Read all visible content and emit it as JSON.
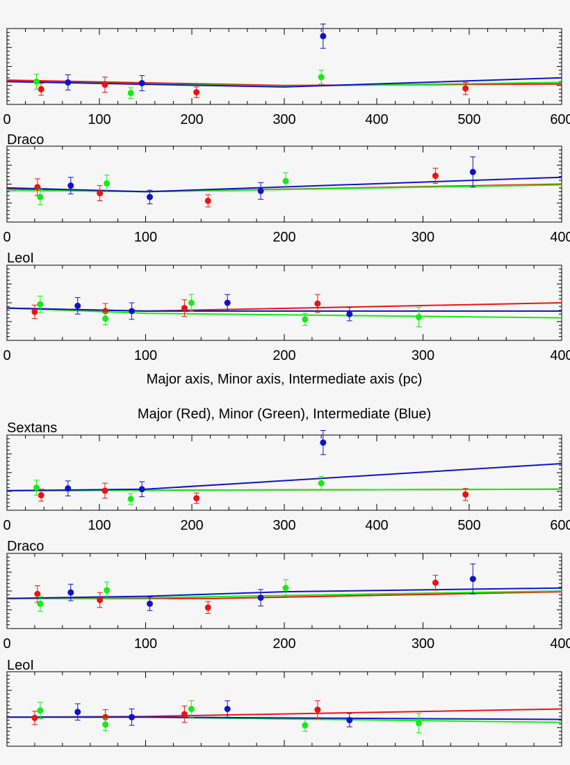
{
  "colors": {
    "major": "#ee1111",
    "minor": "#11ee11",
    "intermediate": "#1111cc",
    "axis": "#000000",
    "background": "#f6f6f6"
  },
  "xlabel": "Major axis, Minor axis, Intermediate axis (pc)",
  "section_title": "Major (Red), Minor (Green), Intermediate (Blue)",
  "chart_data": [
    {
      "type": "scatter",
      "title": "",
      "panel": "top-1",
      "show_tick_labels": true,
      "xlim": [
        0,
        600
      ],
      "ylim": [
        0,
        10
      ],
      "xticks": [
        0,
        100,
        200,
        300,
        400,
        500,
        600
      ],
      "xtick_labels": [
        "0",
        "100",
        "200",
        "300",
        "400",
        "500",
        "600"
      ],
      "series": [
        {
          "name": "Major",
          "color": "#ee1111",
          "points": [
            [
              37,
              2.0,
              0.8
            ],
            [
              106,
              2.6,
              1.0
            ],
            [
              205,
              1.6,
              0.7
            ],
            [
              496,
              2.1,
              0.8
            ]
          ],
          "line": [
            [
              0,
              3.2
            ],
            [
              300,
              2.5
            ],
            [
              600,
              2.7
            ]
          ]
        },
        {
          "name": "Minor",
          "color": "#11ee11",
          "points": [
            [
              32,
              3.0,
              1.0
            ],
            [
              134,
              1.5,
              0.7
            ],
            [
              340,
              3.6,
              0.9
            ]
          ],
          "line": [
            [
              0,
              3.0
            ],
            [
              300,
              2.4
            ],
            [
              600,
              2.9
            ]
          ]
        },
        {
          "name": "Intermediate",
          "color": "#1111cc",
          "points": [
            [
              66,
              2.9,
              1.0
            ],
            [
              146,
              2.8,
              1.0
            ],
            [
              342,
              9.0,
              1.6
            ]
          ],
          "line": [
            [
              0,
              3.0
            ],
            [
              300,
              2.3
            ],
            [
              600,
              3.5
            ]
          ]
        }
      ]
    },
    {
      "type": "scatter",
      "title": "Draco",
      "panel": "top-2",
      "show_tick_labels": true,
      "xlim": [
        0,
        400
      ],
      "ylim": [
        0,
        10
      ],
      "xticks": [
        0,
        100,
        200,
        300,
        400
      ],
      "xtick_labels": [
        "0",
        "100",
        "200",
        "300",
        "400"
      ],
      "series": [
        {
          "name": "Major",
          "color": "#ee1111",
          "points": [
            [
              22,
              4.6,
              1.1
            ],
            [
              67,
              3.8,
              1.0
            ],
            [
              145,
              2.8,
              0.8
            ],
            [
              309,
              6.1,
              1.0
            ]
          ],
          "line": [
            [
              0,
              4.4
            ],
            [
              100,
              4.0
            ],
            [
              400,
              5.0
            ]
          ]
        },
        {
          "name": "Minor",
          "color": "#11ee11",
          "points": [
            [
              24,
              3.3,
              1.0
            ],
            [
              72,
              5.1,
              1.1
            ],
            [
              201,
              5.4,
              1.1
            ]
          ],
          "line": [
            [
              0,
              4.2
            ],
            [
              100,
              4.0
            ],
            [
              400,
              4.9
            ]
          ]
        },
        {
          "name": "Intermediate",
          "color": "#1111cc",
          "points": [
            [
              46,
              4.8,
              1.1
            ],
            [
              103,
              3.3,
              0.9
            ],
            [
              183,
              4.1,
              1.1
            ],
            [
              336,
              6.6,
              2.0
            ]
          ],
          "line": [
            [
              0,
              4.5
            ],
            [
              100,
              4.0
            ],
            [
              400,
              5.9
            ]
          ]
        }
      ]
    },
    {
      "type": "scatter",
      "title": "LeoI",
      "panel": "top-3",
      "show_tick_labels": true,
      "xlim": [
        0,
        400
      ],
      "ylim": [
        0,
        10
      ],
      "xticks": [
        0,
        100,
        200,
        300,
        400
      ],
      "xtick_labels": [
        "0",
        "100",
        "200",
        "300",
        "400"
      ],
      "series": [
        {
          "name": "Major",
          "color": "#ee1111",
          "points": [
            [
              20,
              3.8,
              0.9
            ],
            [
              71,
              3.9,
              1.0
            ],
            [
              128,
              4.3,
              1.1
            ],
            [
              224,
              4.9,
              1.2
            ]
          ],
          "line": [
            [
              0,
              4.3
            ],
            [
              100,
              3.9
            ],
            [
              400,
              5.0
            ]
          ]
        },
        {
          "name": "Minor",
          "color": "#11ee11",
          "points": [
            [
              24,
              4.8,
              1.1
            ],
            [
              71,
              2.9,
              0.8
            ],
            [
              133,
              5.0,
              1.1
            ],
            [
              215,
              2.8,
              0.8
            ],
            [
              297,
              3.1,
              1.3
            ]
          ],
          "line": [
            [
              0,
              4.3
            ],
            [
              100,
              3.6
            ],
            [
              400,
              3.0
            ]
          ]
        },
        {
          "name": "Intermediate",
          "color": "#1111cc",
          "points": [
            [
              51,
              4.6,
              1.1
            ],
            [
              90,
              3.9,
              1.1
            ],
            [
              159,
              5.0,
              1.1
            ],
            [
              247,
              3.5,
              0.9
            ]
          ],
          "line": [
            [
              0,
              4.3
            ],
            [
              100,
              3.9
            ],
            [
              400,
              3.9
            ]
          ]
        }
      ]
    },
    {
      "type": "scatter",
      "title": "Sextans",
      "panel": "bottom-1",
      "show_tick_labels": true,
      "xlim": [
        0,
        600
      ],
      "ylim": [
        0,
        10
      ],
      "xticks": [
        0,
        100,
        200,
        300,
        400,
        500,
        600
      ],
      "xtick_labels": [
        "0",
        "100",
        "200",
        "300",
        "400",
        "500",
        "600"
      ],
      "series": [
        {
          "name": "Major",
          "color": "#ee1111",
          "points": [
            [
              37,
              2.0,
              0.8
            ],
            [
              106,
              2.6,
              1.0
            ],
            [
              205,
              1.6,
              0.7
            ],
            [
              496,
              2.1,
              0.8
            ]
          ],
          "line": [
            [
              0,
              2.6
            ],
            [
              600,
              2.8
            ]
          ]
        },
        {
          "name": "Minor",
          "color": "#11ee11",
          "points": [
            [
              32,
              3.0,
              1.0
            ],
            [
              134,
              1.5,
              0.7
            ],
            [
              340,
              3.6,
              0.9
            ]
          ],
          "line": [
            [
              0,
              2.6
            ],
            [
              600,
              2.8
            ]
          ]
        },
        {
          "name": "Intermediate",
          "color": "#1111cc",
          "points": [
            [
              66,
              2.9,
              1.0
            ],
            [
              146,
              2.8,
              1.0
            ],
            [
              342,
              9.0,
              1.6
            ]
          ],
          "line": [
            [
              0,
              2.6
            ],
            [
              150,
              2.8
            ],
            [
              600,
              6.2
            ]
          ]
        }
      ]
    },
    {
      "type": "scatter",
      "title": "Draco",
      "panel": "bottom-2",
      "show_tick_labels": true,
      "xlim": [
        0,
        400
      ],
      "ylim": [
        0,
        10
      ],
      "xticks": [
        0,
        100,
        200,
        300,
        400
      ],
      "xtick_labels": [
        "0",
        "100",
        "200",
        "300",
        "400"
      ],
      "series": [
        {
          "name": "Major",
          "color": "#ee1111",
          "points": [
            [
              22,
              4.6,
              1.1
            ],
            [
              67,
              3.8,
              1.0
            ],
            [
              145,
              2.8,
              0.8
            ],
            [
              309,
              6.1,
              1.0
            ]
          ],
          "line": [
            [
              0,
              4.0
            ],
            [
              150,
              4.0
            ],
            [
              400,
              4.9
            ]
          ]
        },
        {
          "name": "Minor",
          "color": "#11ee11",
          "points": [
            [
              24,
              3.3,
              1.0
            ],
            [
              72,
              5.1,
              1.1
            ],
            [
              201,
              5.4,
              1.1
            ]
          ],
          "line": [
            [
              0,
              4.0
            ],
            [
              100,
              4.1
            ],
            [
              400,
              5.0
            ]
          ]
        },
        {
          "name": "Intermediate",
          "color": "#1111cc",
          "points": [
            [
              46,
              4.8,
              1.1
            ],
            [
              103,
              3.3,
              0.9
            ],
            [
              183,
              4.1,
              1.1
            ],
            [
              336,
              6.6,
              2.0
            ]
          ],
          "line": [
            [
              0,
              4.0
            ],
            [
              100,
              4.3
            ],
            [
              200,
              4.9
            ],
            [
              400,
              5.4
            ]
          ]
        }
      ]
    },
    {
      "type": "scatter",
      "title": "LeoI",
      "panel": "bottom-3",
      "show_tick_labels": false,
      "xlim": [
        0,
        400
      ],
      "ylim": [
        0,
        10
      ],
      "xticks": [
        0,
        100,
        200,
        300,
        400
      ],
      "xtick_labels": [],
      "series": [
        {
          "name": "Major",
          "color": "#ee1111",
          "points": [
            [
              20,
              3.8,
              0.9
            ],
            [
              71,
              3.9,
              1.0
            ],
            [
              128,
              4.3,
              1.1
            ],
            [
              224,
              4.9,
              1.2
            ]
          ],
          "line": [
            [
              0,
              3.9
            ],
            [
              100,
              4.0
            ],
            [
              400,
              5.0
            ]
          ]
        },
        {
          "name": "Minor",
          "color": "#11ee11",
          "points": [
            [
              24,
              4.8,
              1.1
            ],
            [
              71,
              2.9,
              0.8
            ],
            [
              133,
              5.0,
              1.1
            ],
            [
              215,
              2.8,
              0.8
            ],
            [
              297,
              3.1,
              1.3
            ]
          ],
          "line": [
            [
              0,
              3.9
            ],
            [
              100,
              3.9
            ],
            [
              400,
              3.2
            ]
          ]
        },
        {
          "name": "Intermediate",
          "color": "#1111cc",
          "points": [
            [
              51,
              4.6,
              1.1
            ],
            [
              90,
              3.9,
              1.1
            ],
            [
              159,
              5.0,
              1.1
            ],
            [
              247,
              3.5,
              0.9
            ]
          ],
          "line": [
            [
              0,
              3.9
            ],
            [
              100,
              3.9
            ],
            [
              400,
              3.6
            ]
          ]
        }
      ]
    }
  ]
}
